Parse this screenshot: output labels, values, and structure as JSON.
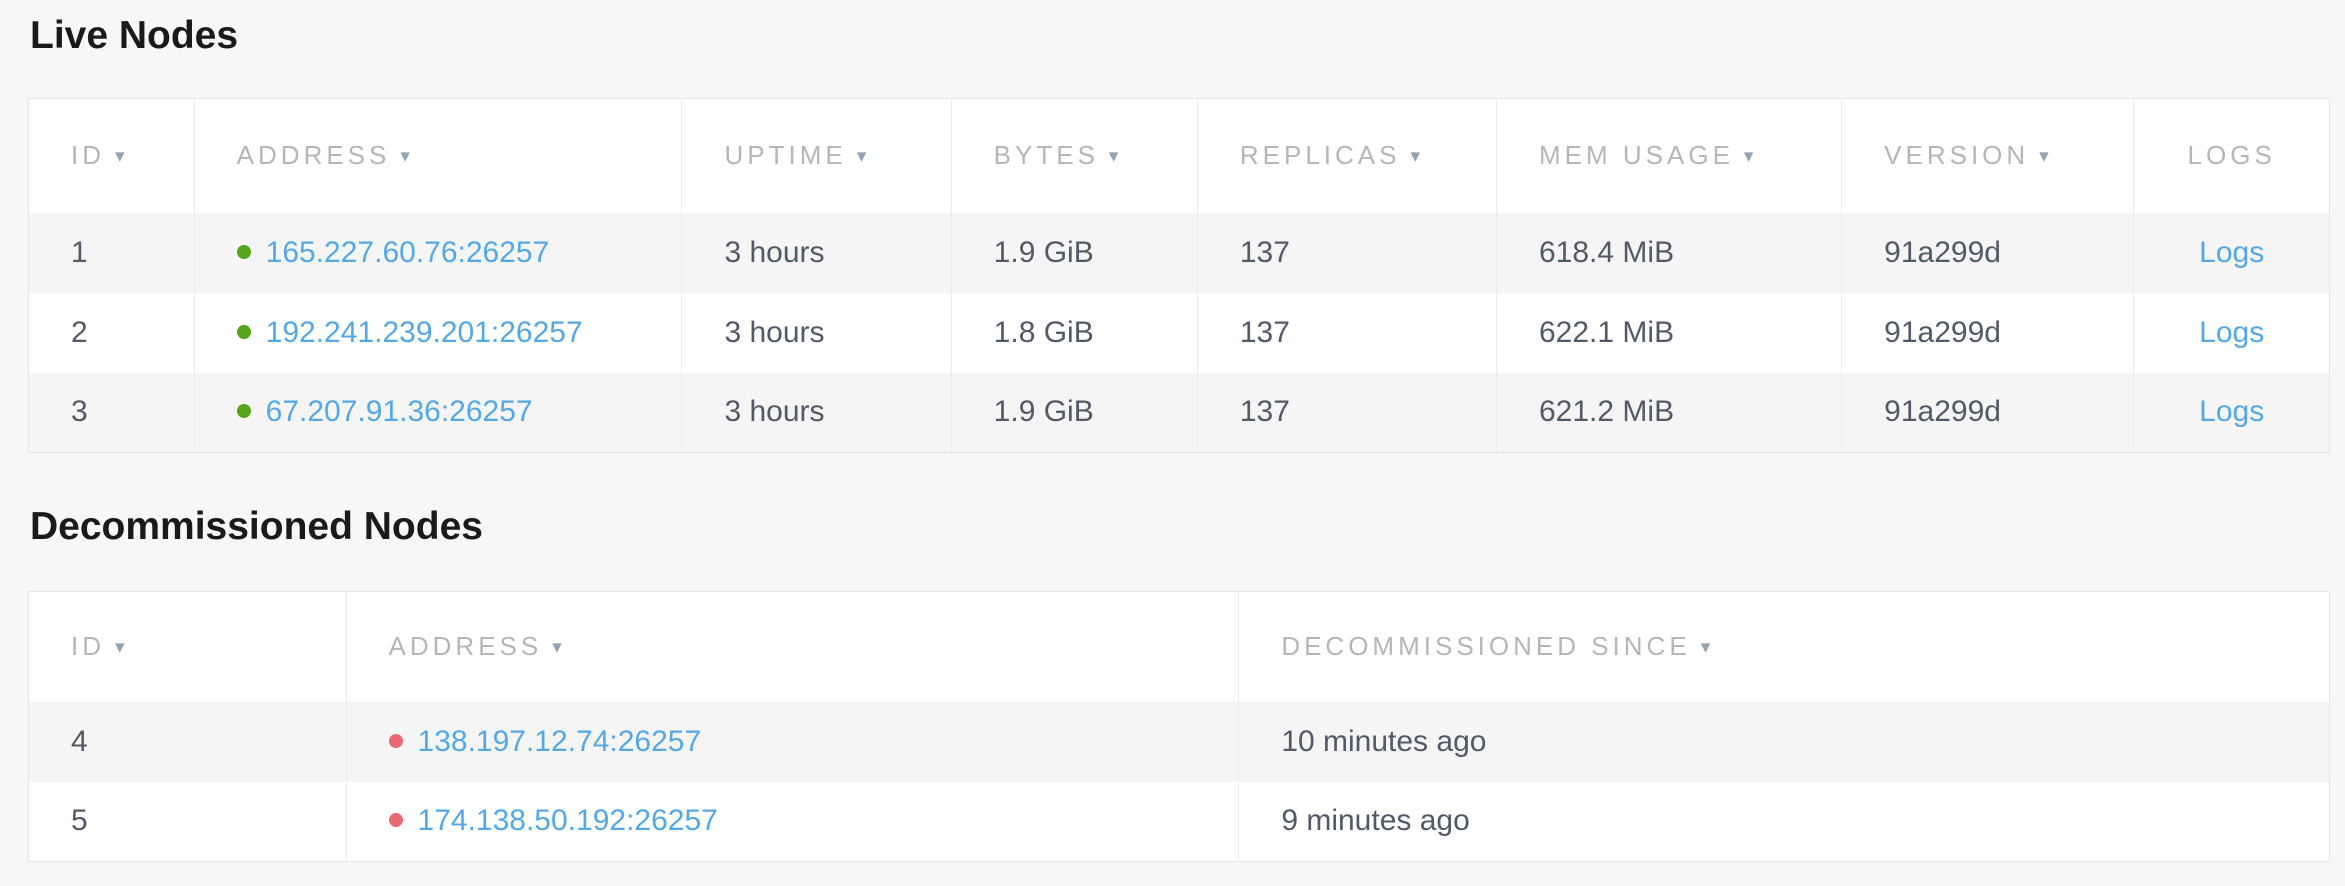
{
  "icons": {
    "sort_arrow": "▾",
    "live_status_dot": "green-circle",
    "decommissioned_status_dot": "red-circle"
  },
  "colors": {
    "link": "#54a8e8",
    "live_dot": "#56a41c",
    "decommissioned_dot": "#e96a72",
    "header_text": "#b3b7ba",
    "cell_text": "#525a68",
    "row_stripe": "#f5f5f5",
    "page_background": "#f7f7f7"
  },
  "live_nodes": {
    "title": "Live Nodes",
    "columns": {
      "id": "ID",
      "address": "ADDRESS",
      "uptime": "UPTIME",
      "bytes": "BYTES",
      "replicas": "REPLICAS",
      "mem_usage": "MEM USAGE",
      "version": "VERSION",
      "logs": "LOGS"
    },
    "rows": [
      {
        "id": "1",
        "address": "165.227.60.76:26257",
        "status": "live",
        "uptime": "3 hours",
        "bytes": "1.9 GiB",
        "replicas": "137",
        "mem_usage": "618.4 MiB",
        "version": "91a299d",
        "logs_label": "Logs"
      },
      {
        "id": "2",
        "address": "192.241.239.201:26257",
        "status": "live",
        "uptime": "3 hours",
        "bytes": "1.8 GiB",
        "replicas": "137",
        "mem_usage": "622.1 MiB",
        "version": "91a299d",
        "logs_label": "Logs"
      },
      {
        "id": "3",
        "address": "67.207.91.36:26257",
        "status": "live",
        "uptime": "3 hours",
        "bytes": "1.9 GiB",
        "replicas": "137",
        "mem_usage": "621.2 MiB",
        "version": "91a299d",
        "logs_label": "Logs"
      }
    ]
  },
  "decommissioned_nodes": {
    "title": "Decommissioned Nodes",
    "columns": {
      "id": "ID",
      "address": "ADDRESS",
      "decommissioned_since": "DECOMMISSIONED SINCE"
    },
    "rows": [
      {
        "id": "4",
        "address": "138.197.12.74:26257",
        "status": "decommissioned",
        "decommissioned_since": "10 minutes ago"
      },
      {
        "id": "5",
        "address": "174.138.50.192:26257",
        "status": "decommissioned",
        "decommissioned_since": "9 minutes ago"
      }
    ]
  }
}
